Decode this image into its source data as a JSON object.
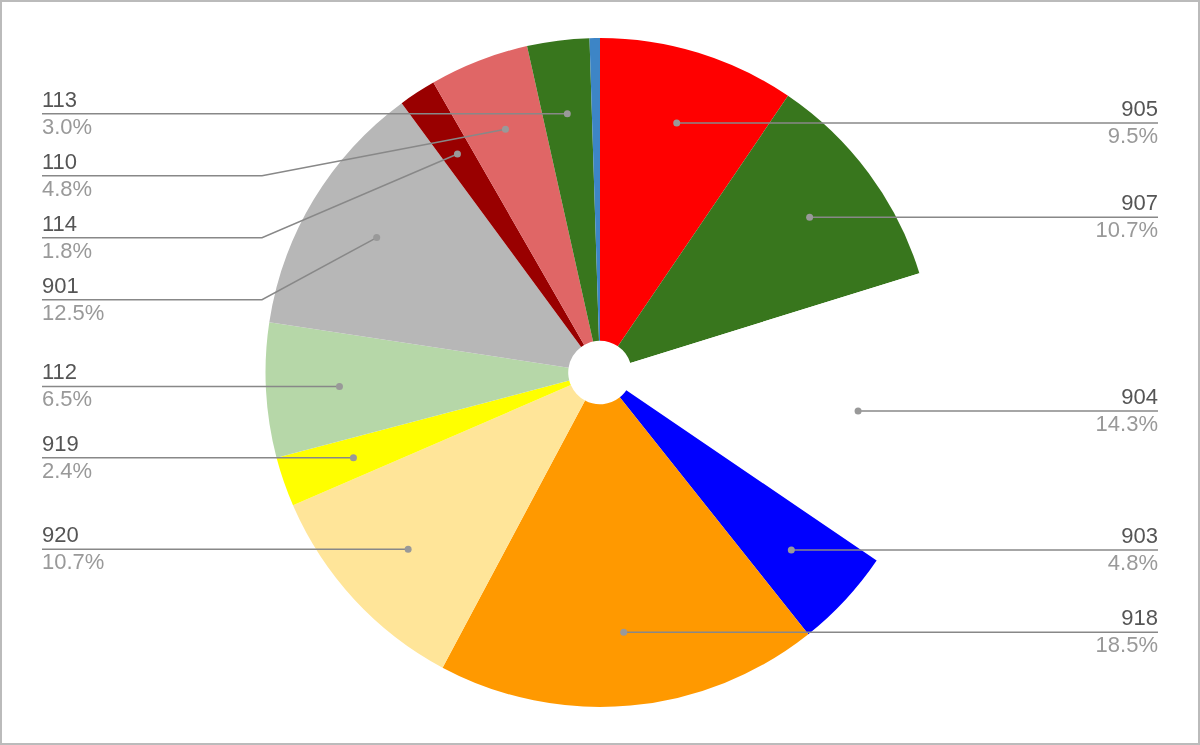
{
  "chart_data": {
    "type": "pie",
    "categories": [
      "905",
      "907",
      "904",
      "903",
      "918",
      "920",
      "919",
      "112",
      "901",
      "114",
      "110",
      "113",
      null
    ],
    "values": [
      9.5,
      10.7,
      14.3,
      4.8,
      18.5,
      10.7,
      2.4,
      6.5,
      12.5,
      1.8,
      4.8,
      3.0,
      0.5
    ],
    "value_labels": [
      "9.5%",
      "10.7%",
      "14.3%",
      "4.8%",
      "18.5%",
      "10.7%",
      "2.4%",
      "6.5%",
      "12.5%",
      "1.8%",
      "4.8%",
      "3.0%",
      null
    ],
    "colors": [
      "#ff0000",
      "#38761d",
      "#ffffff",
      "#0000ff",
      "#ff9900",
      "#ffe599",
      "#ffff00",
      "#b6d7a8",
      "#b7b7b7",
      "#990000",
      "#e06666",
      "#38761d",
      "#3d85c6"
    ]
  }
}
